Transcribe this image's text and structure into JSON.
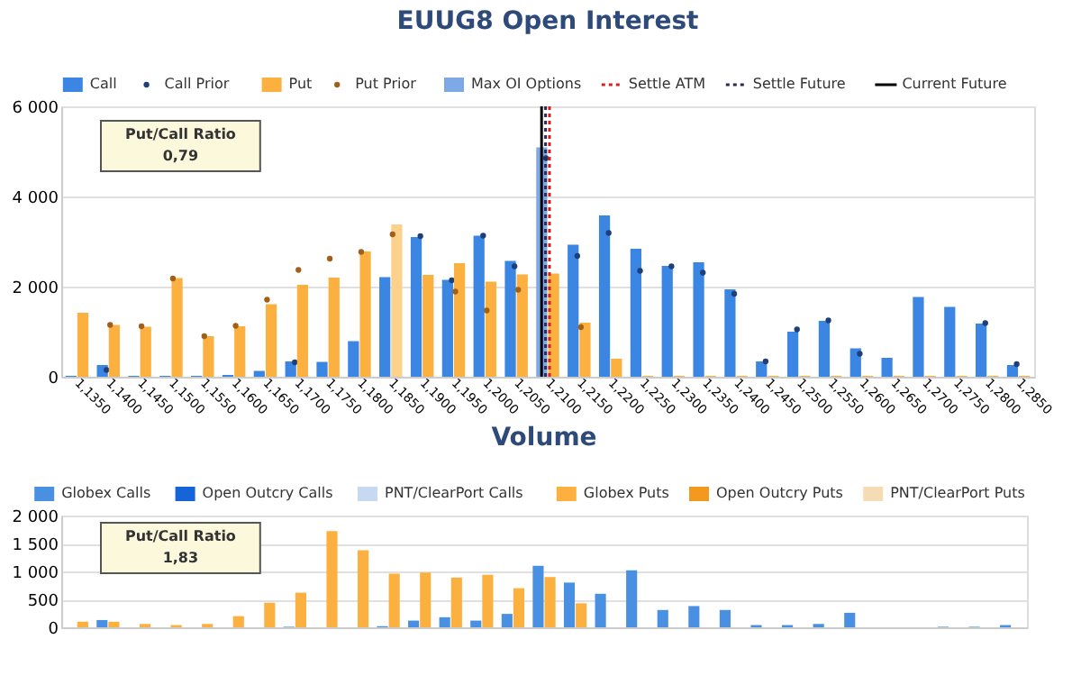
{
  "chart_data": [
    {
      "type": "bar",
      "title": "EUUG8 Open Interest",
      "categories": [
        "1,1350",
        "1,1400",
        "1,1450",
        "1,1500",
        "1,1550",
        "1,1600",
        "1,1650",
        "1,1700",
        "1,1750",
        "1,1800",
        "1,1850",
        "1,1900",
        "1,1950",
        "1,2000",
        "1,2050",
        "1,2100",
        "1,2150",
        "1,2200",
        "1,2250",
        "1,2300",
        "1,2350",
        "1,2400",
        "1,2450",
        "1,2500",
        "1,2550",
        "1,2600",
        "1,2650",
        "1,2700",
        "1,2750",
        "1,2800",
        "1,2850"
      ],
      "ylim": [
        0,
        6000
      ],
      "yticks": [
        0,
        {
          "value": 2000,
          "label": "2 000"
        },
        {
          "value": 4000,
          "label": "4 000"
        },
        {
          "value": 6000,
          "label": "6 000"
        }
      ],
      "series": [
        {
          "name": "Call",
          "type": "bar",
          "color": "#3b86e3",
          "colors": [
            "#3b86e3",
            "#3b86e3",
            "#3b86e3",
            "#3b86e3",
            "#3b86e3",
            "#3b86e3",
            "#3b86e3",
            "#3b86e3",
            "#3b86e3",
            "#3b86e3",
            "#3b86e3",
            "#3b86e3",
            "#3b86e3",
            "#3b86e3",
            "#3b86e3",
            "#7fa9e6",
            "#3b86e3",
            "#3b86e3",
            "#3b86e3",
            "#3b86e3",
            "#3b86e3",
            "#3b86e3",
            "#3b86e3",
            "#3b86e3",
            "#3b86e3",
            "#3b86e3",
            "#3b86e3",
            "#3b86e3",
            "#3b86e3",
            "#3b86e3",
            "#3b86e3"
          ],
          "values": [
            20,
            260,
            20,
            20,
            20,
            40,
            130,
            340,
            330,
            790,
            2210,
            3100,
            2150,
            3130,
            2570,
            5090,
            2930,
            3580,
            2840,
            2460,
            2540,
            1940,
            340,
            1000,
            1240,
            630,
            420,
            1770,
            1550,
            1180,
            260
          ]
        },
        {
          "name": "Call Prior",
          "type": "scatter",
          "color": "#1f3f7a",
          "values": [
            null,
            150,
            null,
            null,
            null,
            null,
            null,
            320,
            null,
            null,
            null,
            3120,
            2140,
            3130,
            2450,
            4850,
            2680,
            3190,
            2350,
            2450,
            2310,
            1840,
            340,
            1050,
            1250,
            510,
            null,
            null,
            null,
            1190,
            280
          ]
        },
        {
          "name": "Put",
          "type": "bar",
          "color": "#fbb040",
          "colors": [
            "#fbb040",
            "#fbb040",
            "#fbb040",
            "#fbb040",
            "#fbb040",
            "#fbb040",
            "#fbb040",
            "#fbb040",
            "#fbb040",
            "#fbb040",
            "#fcd18c",
            "#fbb040",
            "#fbb040",
            "#fbb040",
            "#fbb040",
            "#fbb040",
            "#fbb040",
            "#fbb040",
            "#fbb040",
            "#fbb040",
            "#fbb040",
            "#fbb040",
            "#fbb040",
            "#fbb040",
            "#fbb040",
            "#fbb040",
            "#fbb040",
            "#fbb040",
            "#fbb040",
            "#fbb040",
            "#fbb040"
          ],
          "values": [
            1420,
            1150,
            1110,
            2190,
            900,
            1120,
            1610,
            2040,
            2200,
            2780,
            3380,
            2260,
            2520,
            2110,
            2270,
            2290,
            1200,
            400,
            20,
            20,
            20,
            20,
            20,
            20,
            20,
            20,
            20,
            20,
            20,
            20,
            20
          ]
        },
        {
          "name": "Put Prior",
          "type": "scatter",
          "color": "#a0601a",
          "values": [
            null,
            1150,
            1120,
            2180,
            900,
            1130,
            1710,
            2370,
            2620,
            2770,
            3160,
            null,
            1890,
            1470,
            1930,
            null,
            1100,
            null,
            null,
            null,
            null,
            null,
            null,
            null,
            null,
            null,
            null,
            null,
            null,
            null,
            null
          ]
        }
      ],
      "ref_lines": [
        {
          "axis": "x",
          "value": "1,2100",
          "label": "Settle ATM",
          "color": "#d42020",
          "line_style": "dotted"
        },
        {
          "axis": "x",
          "value": "1,2100",
          "label": "Settle Future",
          "color": "#2a2a55",
          "line_style": "dotted"
        },
        {
          "axis": "x",
          "value": "1,2100",
          "label": "Current Future",
          "color": "#000000",
          "line_style": "solid"
        }
      ],
      "annotations": [
        "Max OI Options",
        "Put/Call Ratio",
        "0,79"
      ],
      "marker": "circle",
      "grid": "y",
      "legend": "top"
    },
    {
      "type": "bar",
      "title": "Volume",
      "categories": [
        null,
        null,
        null,
        null,
        null,
        null,
        null,
        null,
        null,
        null,
        null,
        null,
        null,
        null,
        null,
        null,
        null,
        null,
        null,
        null,
        null,
        null,
        null,
        null,
        null,
        null,
        null,
        null,
        null,
        null,
        null
      ],
      "ylim": [
        0,
        2000
      ],
      "yticks": [
        0,
        500,
        {
          "value": 1000,
          "label": "1 000"
        },
        {
          "value": 1500,
          "label": "1 500"
        },
        {
          "value": 2000,
          "label": "2 000"
        }
      ],
      "series": [
        {
          "name": "Globex Calls",
          "color": "#4a90e2",
          "values": [
            null,
            130,
            null,
            null,
            null,
            null,
            null,
            10,
            null,
            null,
            20,
            120,
            180,
            120,
            240,
            1100,
            800,
            600,
            1020,
            310,
            380,
            310,
            40,
            40,
            60,
            260,
            null,
            null,
            10,
            10,
            40
          ]
        },
        {
          "name": "Open Outcry Calls",
          "color": "#1565d8",
          "values": [
            null,
            null,
            null,
            null,
            null,
            null,
            null,
            null,
            null,
            null,
            null,
            null,
            null,
            null,
            null,
            null,
            null,
            null,
            null,
            null,
            null,
            null,
            null,
            null,
            null,
            null,
            null,
            null,
            null,
            null,
            null
          ]
        },
        {
          "name": "PNT/ClearPort Calls",
          "color": "#c6d8f2",
          "values": [
            null,
            null,
            null,
            null,
            null,
            null,
            null,
            null,
            null,
            null,
            null,
            null,
            null,
            null,
            null,
            null,
            null,
            null,
            null,
            null,
            null,
            null,
            null,
            null,
            null,
            null,
            null,
            null,
            null,
            null,
            null
          ]
        },
        {
          "name": "Globex Puts",
          "color": "#fbb040",
          "values": [
            100,
            100,
            60,
            40,
            60,
            200,
            440,
            620,
            1720,
            1380,
            960,
            980,
            890,
            940,
            700,
            900,
            430,
            null,
            null,
            null,
            null,
            null,
            null,
            null,
            null,
            null,
            null,
            null,
            null,
            null,
            null
          ]
        },
        {
          "name": "Open Outcry Puts",
          "color": "#f39a1e",
          "values": [
            null,
            null,
            null,
            null,
            null,
            null,
            null,
            null,
            null,
            null,
            null,
            null,
            null,
            null,
            null,
            null,
            null,
            null,
            null,
            null,
            null,
            null,
            null,
            null,
            null,
            null,
            null,
            null,
            null,
            null,
            null
          ]
        },
        {
          "name": "PNT/ClearPort Puts",
          "color": "#f6dcb5",
          "values": [
            null,
            null,
            null,
            null,
            null,
            null,
            null,
            null,
            null,
            null,
            null,
            null,
            null,
            null,
            null,
            null,
            null,
            null,
            null,
            null,
            null,
            null,
            null,
            null,
            null,
            null,
            null,
            null,
            null,
            null,
            null
          ]
        }
      ],
      "annotations": [
        "Put/Call Ratio",
        "1,83"
      ],
      "grid": "y",
      "legend": "top",
      "tick_labels": "y"
    }
  ]
}
